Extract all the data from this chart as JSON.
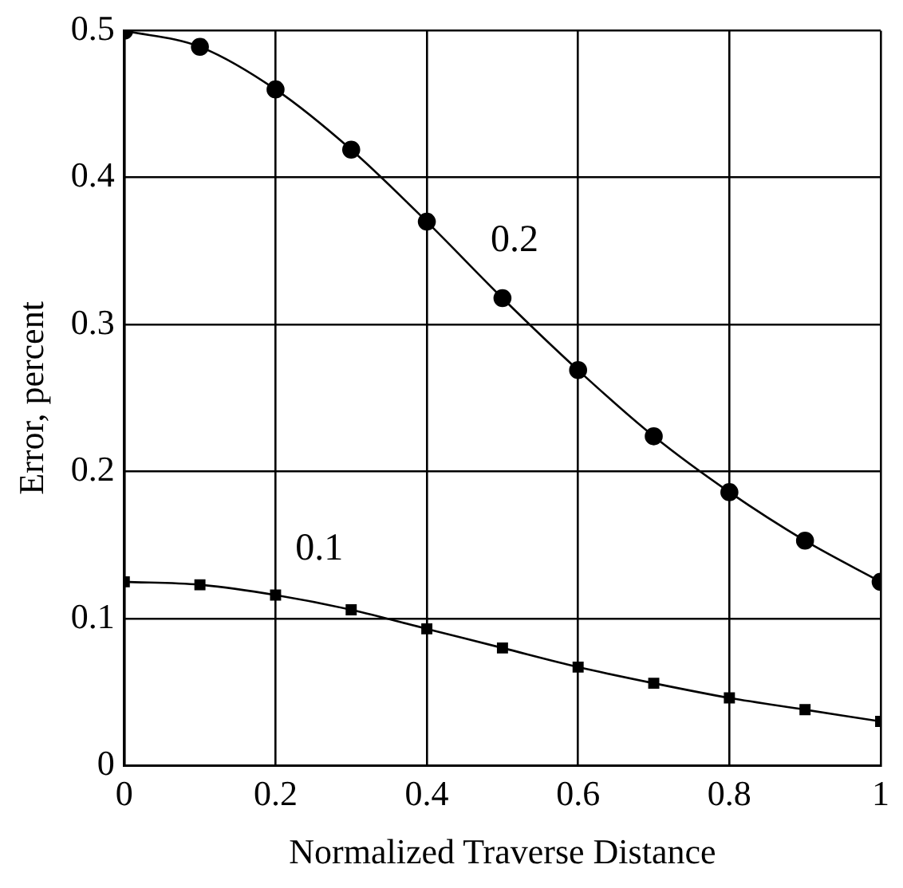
{
  "chart_data": {
    "type": "line",
    "xlabel": "Normalized Traverse Distance",
    "ylabel": "Error, percent",
    "x": [
      0,
      0.1,
      0.2,
      0.3,
      0.4,
      0.5,
      0.6,
      0.7,
      0.8,
      0.9,
      1
    ],
    "series": [
      {
        "name": "0.2",
        "color": "#000000",
        "marker": "circle",
        "values": [
          0.5,
          0.489,
          0.46,
          0.419,
          0.37,
          0.318,
          0.269,
          0.224,
          0.186,
          0.153,
          0.125
        ]
      },
      {
        "name": "0.1",
        "color": "#000000",
        "marker": "square",
        "values": [
          0.125,
          0.123,
          0.116,
          0.106,
          0.093,
          0.08,
          0.067,
          0.056,
          0.046,
          0.038,
          0.03
        ]
      }
    ],
    "xlim": [
      0,
      1
    ],
    "xticks": [
      0,
      0.2,
      0.4,
      0.6,
      0.8,
      1
    ],
    "ylim": [
      0,
      0.5
    ],
    "yticks": [
      0,
      0.1,
      0.2,
      0.3,
      0.4,
      0.5
    ],
    "grid": true,
    "legend": false,
    "line_style": "solid"
  }
}
